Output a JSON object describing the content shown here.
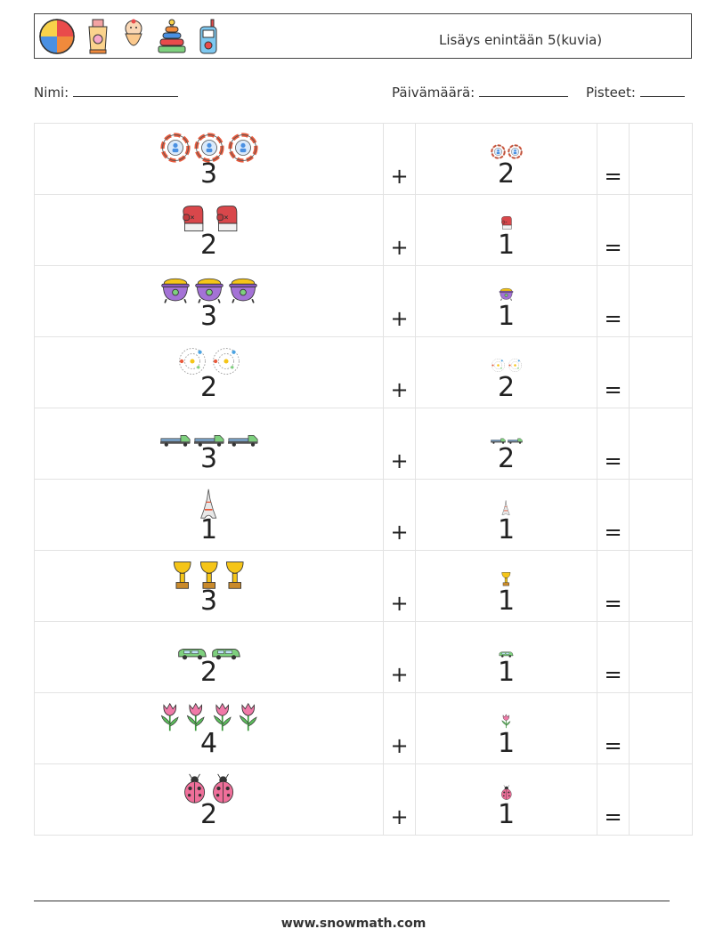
{
  "header": {
    "title": "Lisäys enintään 5(kuvia)",
    "icons": [
      "beach-ball-icon",
      "sunscreen-icon",
      "swaddled-baby-icon",
      "stacking-rings-toy-icon",
      "baby-monitor-icon"
    ]
  },
  "info": {
    "name_label": "Nimi:",
    "date_label": "Päivämäärä:",
    "score_label": "Pisteet:"
  },
  "operators": {
    "plus": "+",
    "equals": "="
  },
  "problems": [
    {
      "a": "3",
      "b": "2",
      "icon": "lifebuoy-icon"
    },
    {
      "a": "2",
      "b": "1",
      "icon": "boxing-glove-icon"
    },
    {
      "a": "3",
      "b": "1",
      "icon": "pot-of-gold-icon"
    },
    {
      "a": "2",
      "b": "2",
      "icon": "atom-icon"
    },
    {
      "a": "3",
      "b": "2",
      "icon": "tow-truck-icon"
    },
    {
      "a": "1",
      "b": "1",
      "icon": "eiffel-tower-icon"
    },
    {
      "a": "3",
      "b": "1",
      "icon": "trophy-icon"
    },
    {
      "a": "2",
      "b": "1",
      "icon": "car-icon"
    },
    {
      "a": "4",
      "b": "1",
      "icon": "tulip-icon"
    },
    {
      "a": "2",
      "b": "1",
      "icon": "ladybug-icon"
    }
  ],
  "footer": {
    "url": "www.snowmath.com"
  }
}
